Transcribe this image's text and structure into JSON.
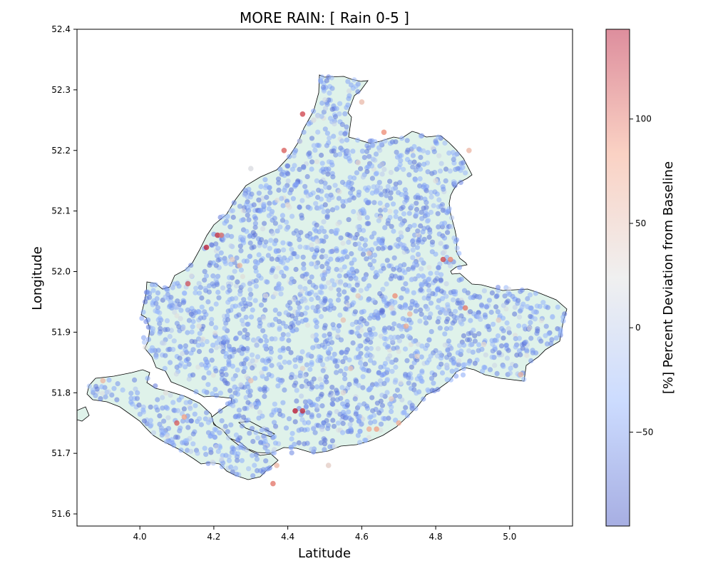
{
  "chart_data": {
    "type": "scatter",
    "title": "MORE RAIN: [ Rain 0-5 ]",
    "xlabel": "Latitude",
    "ylabel": "Longitude",
    "xlim": [
      3.83,
      5.17
    ],
    "ylim": [
      51.58,
      52.4
    ],
    "xticks": [
      4.0,
      4.2,
      4.4,
      4.6,
      4.8,
      5.0
    ],
    "xtick_labels": [
      "4.0",
      "4.2",
      "4.4",
      "4.6",
      "4.8",
      "5.0"
    ],
    "yticks": [
      51.6,
      51.7,
      51.8,
      51.9,
      52.0,
      52.1,
      52.2,
      52.3,
      52.4
    ],
    "ytick_labels": [
      "51.6",
      "51.7",
      "51.8",
      "51.9",
      "52.0",
      "52.1",
      "52.2",
      "52.3",
      "52.4"
    ],
    "colorbar": {
      "label": "[%] Percent Deviation from Baseline",
      "colormap": "coolwarm",
      "range": [
        -95,
        143
      ],
      "ticks": [
        -50,
        0,
        50,
        100
      ],
      "tick_labels": [
        "−50",
        "0",
        "50",
        "100"
      ]
    },
    "region_fill": "#dff2ea",
    "region_outline": "#000000",
    "points": [
      [
        4.44,
        52.26,
        120
      ],
      [
        4.21,
        52.06,
        130
      ],
      [
        4.18,
        52.04,
        135
      ],
      [
        4.22,
        52.06,
        100
      ],
      [
        4.27,
        52.01,
        60
      ],
      [
        4.13,
        51.98,
        110
      ],
      [
        4.25,
        52.02,
        40
      ],
      [
        4.39,
        52.2,
        110
      ],
      [
        4.84,
        52.02,
        95
      ],
      [
        4.82,
        52.02,
        120
      ],
      [
        4.88,
        51.94,
        100
      ],
      [
        4.73,
        51.93,
        60
      ],
      [
        4.68,
        51.94,
        30
      ],
      [
        4.59,
        51.96,
        45
      ],
      [
        4.55,
        51.92,
        50
      ],
      [
        4.42,
        51.77,
        140
      ],
      [
        4.44,
        51.77,
        130
      ],
      [
        4.1,
        51.75,
        110
      ],
      [
        4.12,
        51.76,
        80
      ],
      [
        4.36,
        51.65,
        100
      ],
      [
        4.37,
        51.68,
        60
      ],
      [
        4.62,
        51.74,
        70
      ],
      [
        4.64,
        51.74,
        80
      ],
      [
        4.7,
        51.75,
        70
      ],
      [
        4.51,
        51.68,
        40
      ],
      [
        4.97,
        51.92,
        40
      ],
      [
        5.03,
        51.83,
        60
      ],
      [
        4.69,
        51.96,
        90
      ],
      [
        4.62,
        52.03,
        40
      ],
      [
        4.72,
        51.91,
        70
      ],
      [
        4.66,
        52.23,
        90
      ],
      [
        4.89,
        52.2,
        60
      ],
      [
        4.3,
        52.17,
        20
      ],
      [
        4.4,
        52.11,
        30
      ],
      [
        4.48,
        52.05,
        20
      ],
      [
        4.34,
        51.96,
        20
      ],
      [
        3.9,
        51.82,
        60
      ],
      [
        4.07,
        51.8,
        25
      ],
      [
        4.3,
        51.82,
        50
      ],
      [
        4.55,
        51.8,
        30
      ],
      [
        4.75,
        51.86,
        35
      ],
      [
        4.8,
        52.15,
        25
      ],
      [
        4.59,
        52.18,
        35
      ],
      [
        4.6,
        52.28,
        55
      ],
      [
        4.47,
        52.25,
        20
      ],
      [
        4.16,
        51.91,
        25
      ],
      [
        4.57,
        51.84,
        45
      ],
      [
        4.93,
        51.88,
        30
      ],
      [
        4.44,
        51.84,
        35
      ],
      [
        4.68,
        51.79,
        40
      ]
    ]
  }
}
